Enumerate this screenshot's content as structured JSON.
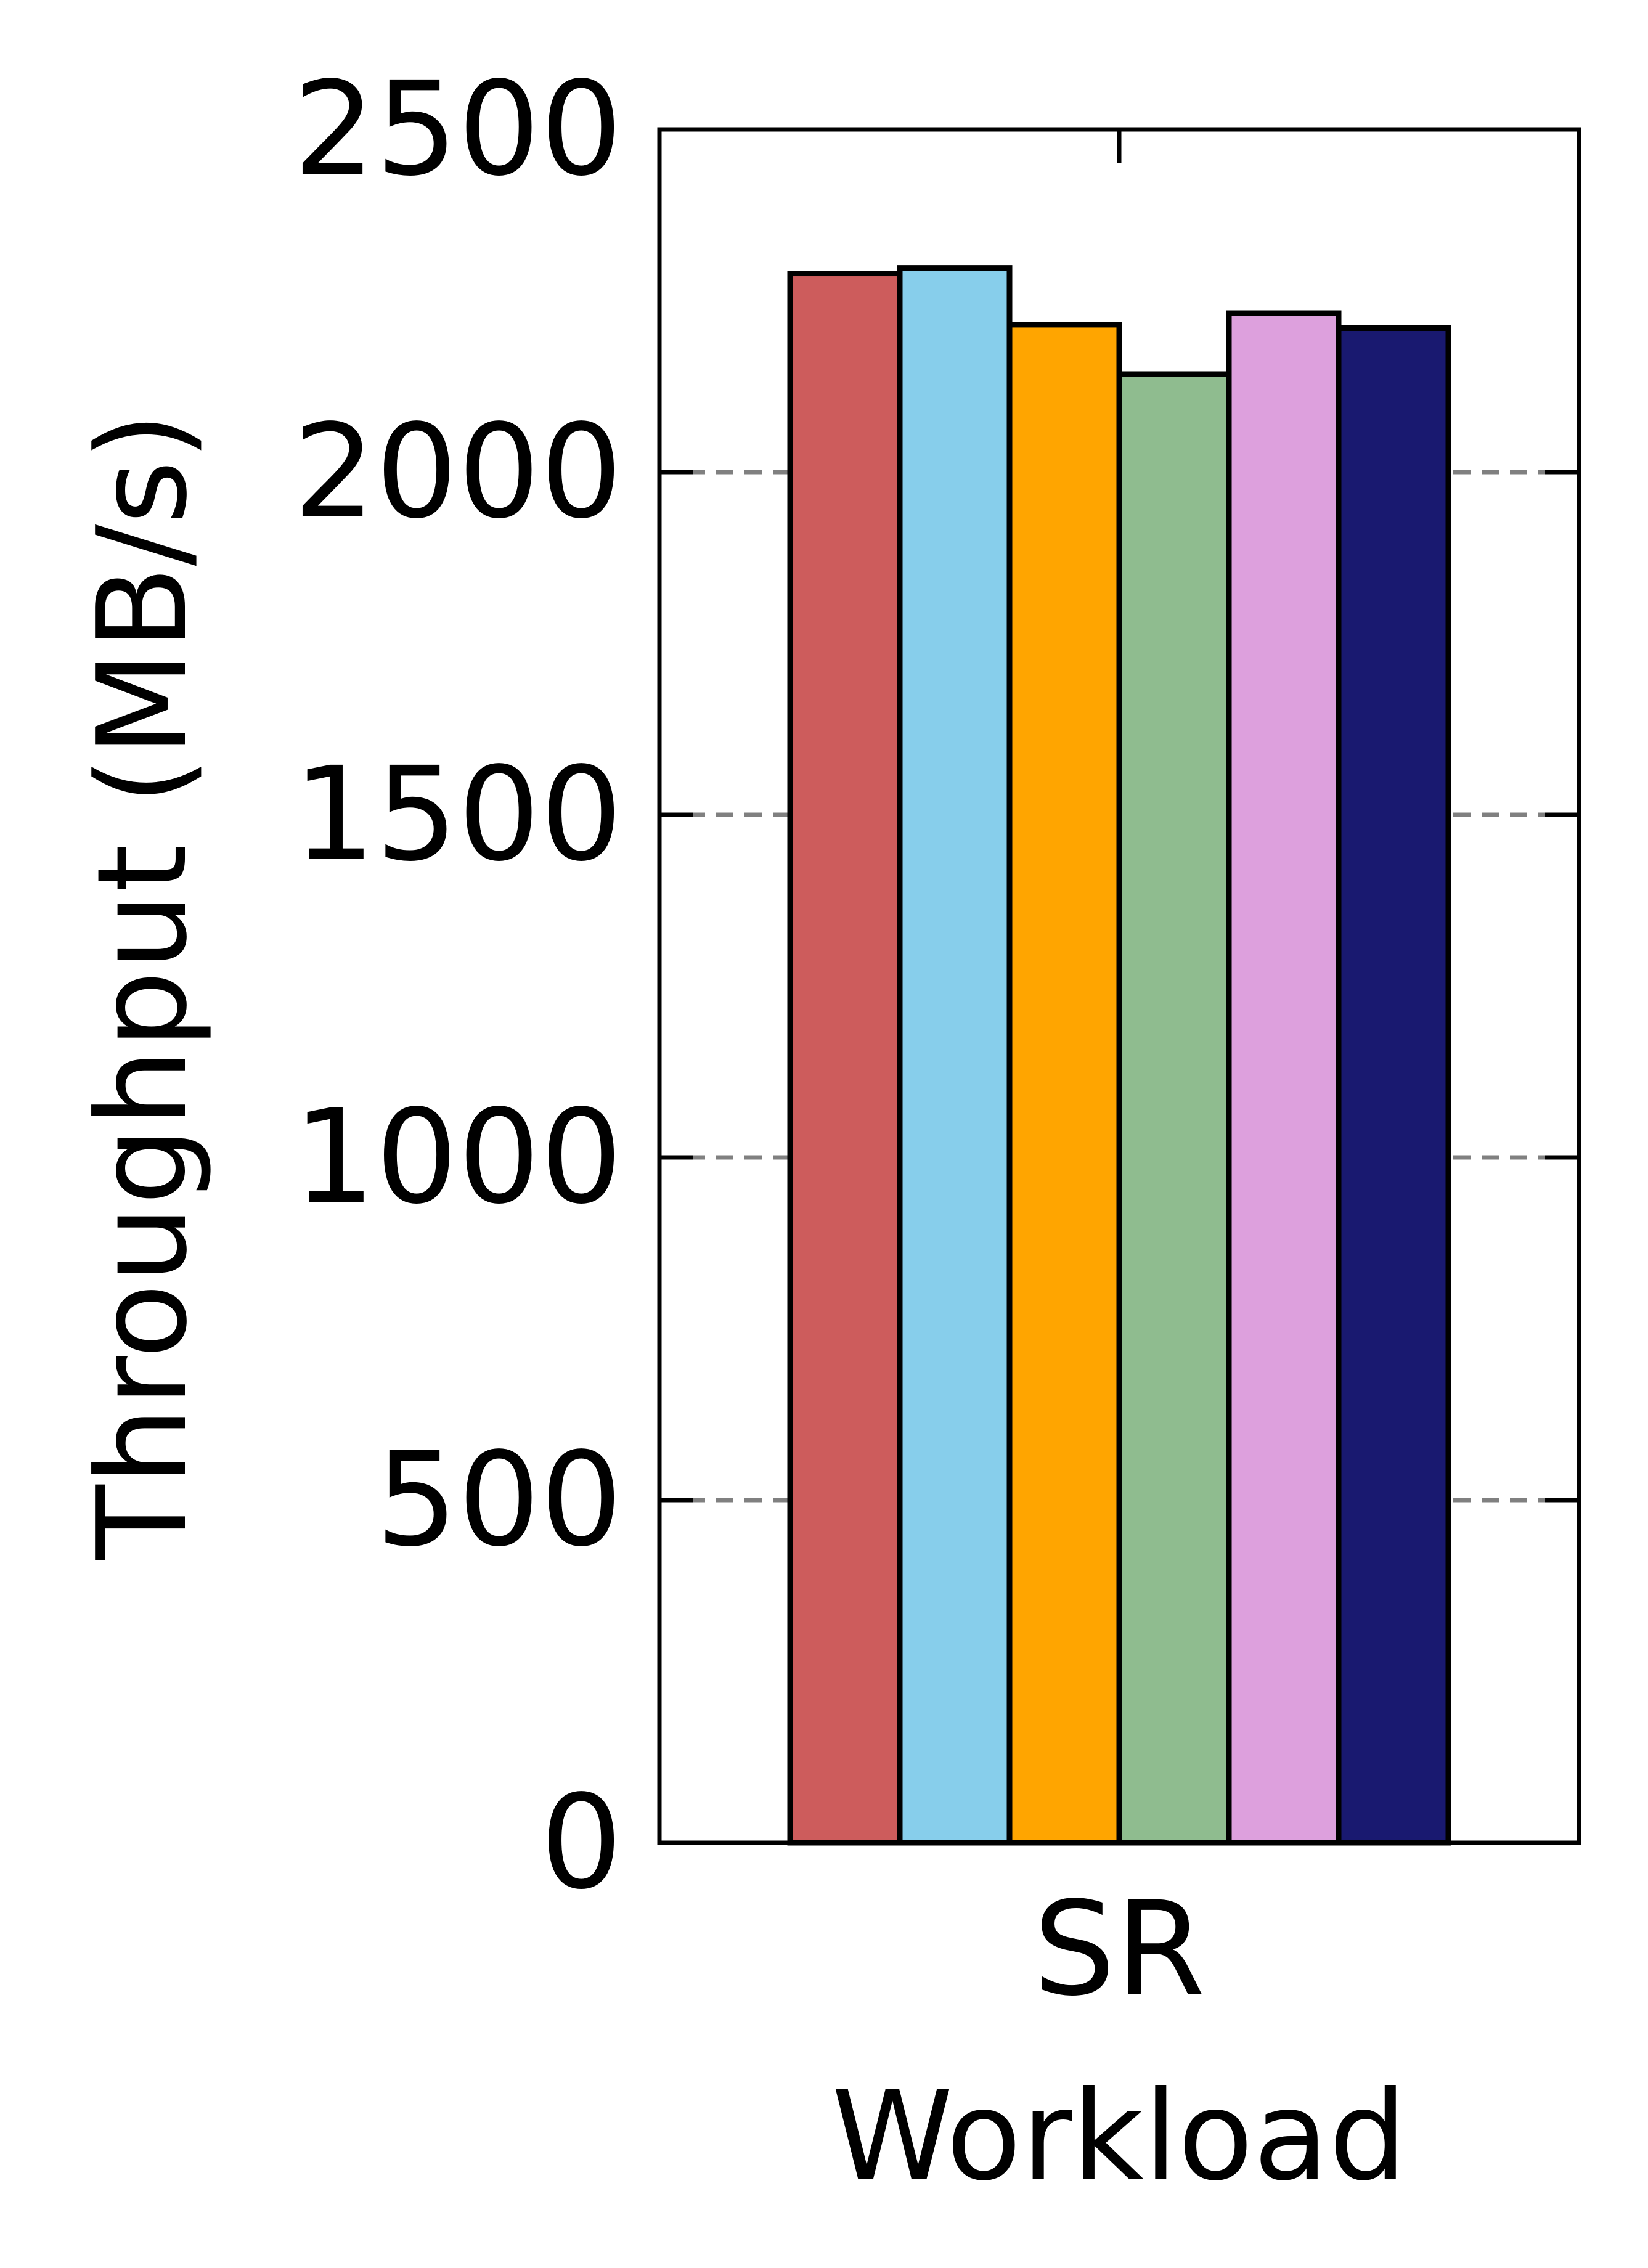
{
  "chart_data": {
    "type": "bar",
    "categories": [
      "SR"
    ],
    "series": [
      {
        "values": [
          2290
        ],
        "color": "#cd5c5c"
      },
      {
        "values": [
          2298
        ],
        "color": "#87ceeb"
      },
      {
        "values": [
          2215
        ],
        "color": "#ffa500"
      },
      {
        "values": [
          2143
        ],
        "color": "#8fbc8f"
      },
      {
        "values": [
          2232
        ],
        "color": "#dda0dd"
      },
      {
        "values": [
          2210
        ],
        "color": "#191970"
      }
    ],
    "title": "",
    "xlabel": "Workload",
    "ylabel": "Throughput (MB/s)",
    "ylim": [
      0,
      2500
    ],
    "yticks": [
      0,
      500,
      1000,
      1500,
      2000,
      2500
    ],
    "ytick_labels": [
      "0",
      "500",
      "1000",
      "1500",
      "2000",
      "2500"
    ],
    "grid": {
      "axis": "y",
      "style": "dashed",
      "color": "#808080"
    },
    "legend": "none"
  }
}
